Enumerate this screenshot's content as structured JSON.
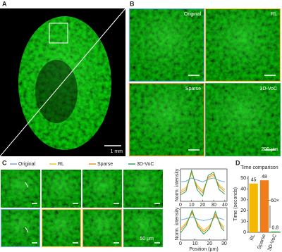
{
  "panels": {
    "a": "A",
    "b": "B",
    "c": "C",
    "d": "D"
  },
  "panel_a": {
    "scale_bar": "1 mm"
  },
  "panel_b": {
    "labels": [
      "Original",
      "RL",
      "Sparse",
      "3D-VoC"
    ],
    "scale_bar": "200 µm"
  },
  "panel_c": {
    "scale_bar": "50 µm"
  },
  "chart_data": [
    {
      "type": "line",
      "ylabel": "Norm. intensity",
      "x": [
        0,
        5,
        10,
        15,
        20,
        25,
        30,
        35,
        40
      ],
      "xlim": [
        0,
        42
      ],
      "xticks": [
        0,
        10,
        20,
        30,
        40
      ],
      "ylim": [
        0,
        1
      ],
      "series": [
        {
          "name": "Original",
          "color": "#6fa8dc",
          "values": [
            0.6,
            0.62,
            0.72,
            0.66,
            0.6,
            0.68,
            0.72,
            0.64,
            0.6
          ]
        },
        {
          "name": "RL",
          "color": "#f1c232",
          "values": [
            0.32,
            0.42,
            0.85,
            0.5,
            0.32,
            0.7,
            0.8,
            0.5,
            0.36
          ]
        },
        {
          "name": "Sparse",
          "color": "#e69138",
          "values": [
            0.26,
            0.36,
            0.9,
            0.45,
            0.26,
            0.74,
            0.85,
            0.45,
            0.3
          ]
        },
        {
          "name": "3D-VoC",
          "color": "#38a14a",
          "values": [
            0.2,
            0.3,
            0.95,
            0.36,
            0.16,
            0.8,
            0.9,
            0.36,
            0.22
          ]
        }
      ]
    },
    {
      "type": "line",
      "ylabel": "Norm. intensity",
      "xlabel": "Position (µm)",
      "x": [
        0,
        4,
        8,
        12,
        16,
        20,
        24,
        28,
        30
      ],
      "xlim": [
        0,
        32
      ],
      "xticks": [
        0,
        10,
        20,
        30
      ],
      "ylim": [
        0,
        1
      ],
      "series": [
        {
          "name": "Original",
          "color": "#6fa8dc",
          "values": [
            0.62,
            0.66,
            0.72,
            0.64,
            0.6,
            0.64,
            0.7,
            0.66,
            0.62
          ]
        },
        {
          "name": "RL",
          "color": "#f1c232",
          "values": [
            0.35,
            0.55,
            0.82,
            0.5,
            0.3,
            0.45,
            0.75,
            0.5,
            0.4
          ]
        },
        {
          "name": "Sparse",
          "color": "#e69138",
          "values": [
            0.3,
            0.5,
            0.86,
            0.45,
            0.25,
            0.4,
            0.8,
            0.45,
            0.35
          ]
        },
        {
          "name": "3D-VoC",
          "color": "#38a14a",
          "values": [
            0.22,
            0.45,
            0.92,
            0.4,
            0.18,
            0.35,
            0.88,
            0.38,
            0.28
          ]
        }
      ]
    },
    {
      "type": "bar",
      "title": "Time comparison",
      "ylabel": "Time (seconds)",
      "categories": [
        "RL",
        "Sparse",
        "3D-VoC"
      ],
      "values": [
        45,
        48,
        0.8
      ],
      "colors": [
        "#f5b800",
        "#f07d1a",
        "#3cb44b"
      ],
      "ylim": [
        0,
        52
      ],
      "yticks": [
        0,
        10,
        20,
        30,
        40,
        50
      ],
      "annotation": "~60×"
    }
  ]
}
